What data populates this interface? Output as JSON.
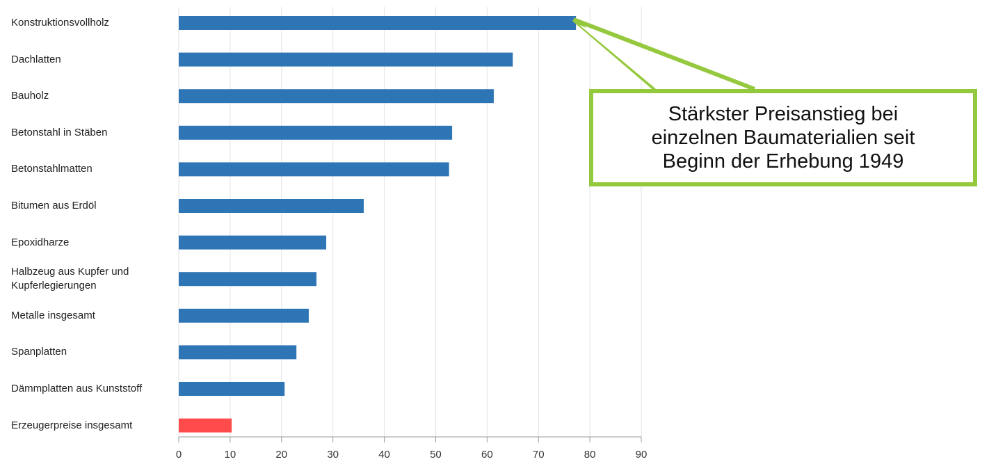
{
  "chart_data": {
    "type": "barh",
    "categories": [
      "Konstruktionsvollholz",
      "Dachlatten",
      "Bauholz",
      "Betonstahl in Stäben",
      "Betonstahlmatten",
      "Bitumen aus Erdöl",
      "Epoxidharze",
      "Halbzeug aus Kupfer und Kupferlegierungen",
      "Metalle insgesamt",
      "Spanplatten",
      "Dämmplatten aus Kunststoff",
      "Erzeugerpreise insgesamt"
    ],
    "values": [
      77.3,
      65.0,
      61.3,
      53.2,
      52.6,
      36.0,
      28.7,
      26.8,
      25.3,
      22.9,
      20.6,
      10.3
    ],
    "colors": [
      "#2e75b6",
      "#2e75b6",
      "#2e75b6",
      "#2e75b6",
      "#2e75b6",
      "#2e75b6",
      "#2e75b6",
      "#2e75b6",
      "#2e75b6",
      "#2e75b6",
      "#2e75b6",
      "#ff4b4b"
    ],
    "xlim": [
      0,
      90
    ],
    "xticks": [
      0,
      10,
      20,
      30,
      40,
      50,
      60,
      70,
      80,
      90
    ],
    "grid": true,
    "annotation": "Stärkster Preisanstieg bei einzelnen Baumaterialien seit Beginn der Erhebung 1949",
    "annotation_color": "#95c93d"
  }
}
